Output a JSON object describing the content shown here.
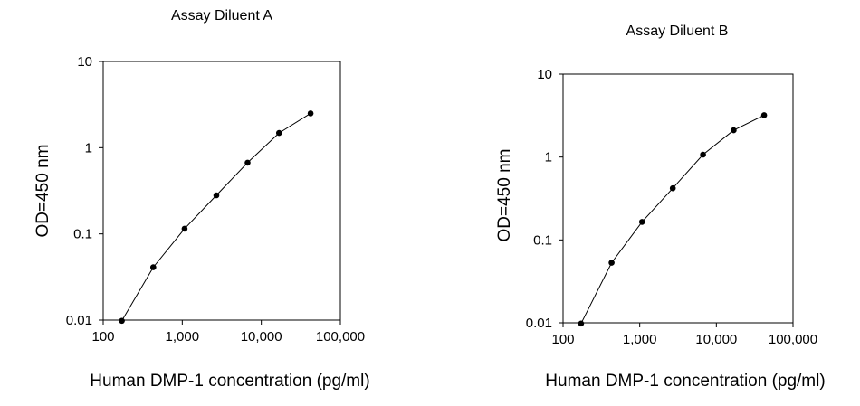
{
  "chart_data": [
    {
      "type": "line",
      "title": "Assay Diluent A",
      "xlabel": "Human DMP-1 concentration (pg/ml)",
      "ylabel": "OD=450 nm",
      "x_scale": "log",
      "y_scale": "log",
      "xlim": [
        100,
        100000
      ],
      "ylim": [
        0.01,
        10
      ],
      "x_tick_labels": [
        "100",
        "1,000",
        "10,000",
        "100,000"
      ],
      "y_tick_labels": [
        "0.01",
        "0.1",
        "1",
        "10"
      ],
      "grid": false,
      "series": [
        {
          "x": [
            172,
            430,
            1070,
            2700,
            6700,
            16800,
            42000
          ],
          "y": [
            0.0098,
            0.041,
            0.115,
            0.28,
            0.67,
            1.48,
            2.5
          ]
        }
      ]
    },
    {
      "type": "line",
      "title": "Assay Diluent B",
      "xlabel": "Human DMP-1 concentration (pg/ml)",
      "ylabel": "OD=450 nm",
      "x_scale": "log",
      "y_scale": "log",
      "xlim": [
        100,
        100000
      ],
      "ylim": [
        0.01,
        10
      ],
      "x_tick_labels": [
        "100",
        "1,000",
        "10,000",
        "100,000"
      ],
      "y_tick_labels": [
        "0.01",
        "0.1",
        "1",
        "10"
      ],
      "grid": false,
      "series": [
        {
          "x": [
            172,
            430,
            1070,
            2700,
            6700,
            16800,
            42000
          ],
          "y": [
            0.0098,
            0.053,
            0.165,
            0.42,
            1.07,
            2.1,
            3.2
          ]
        }
      ]
    }
  ]
}
